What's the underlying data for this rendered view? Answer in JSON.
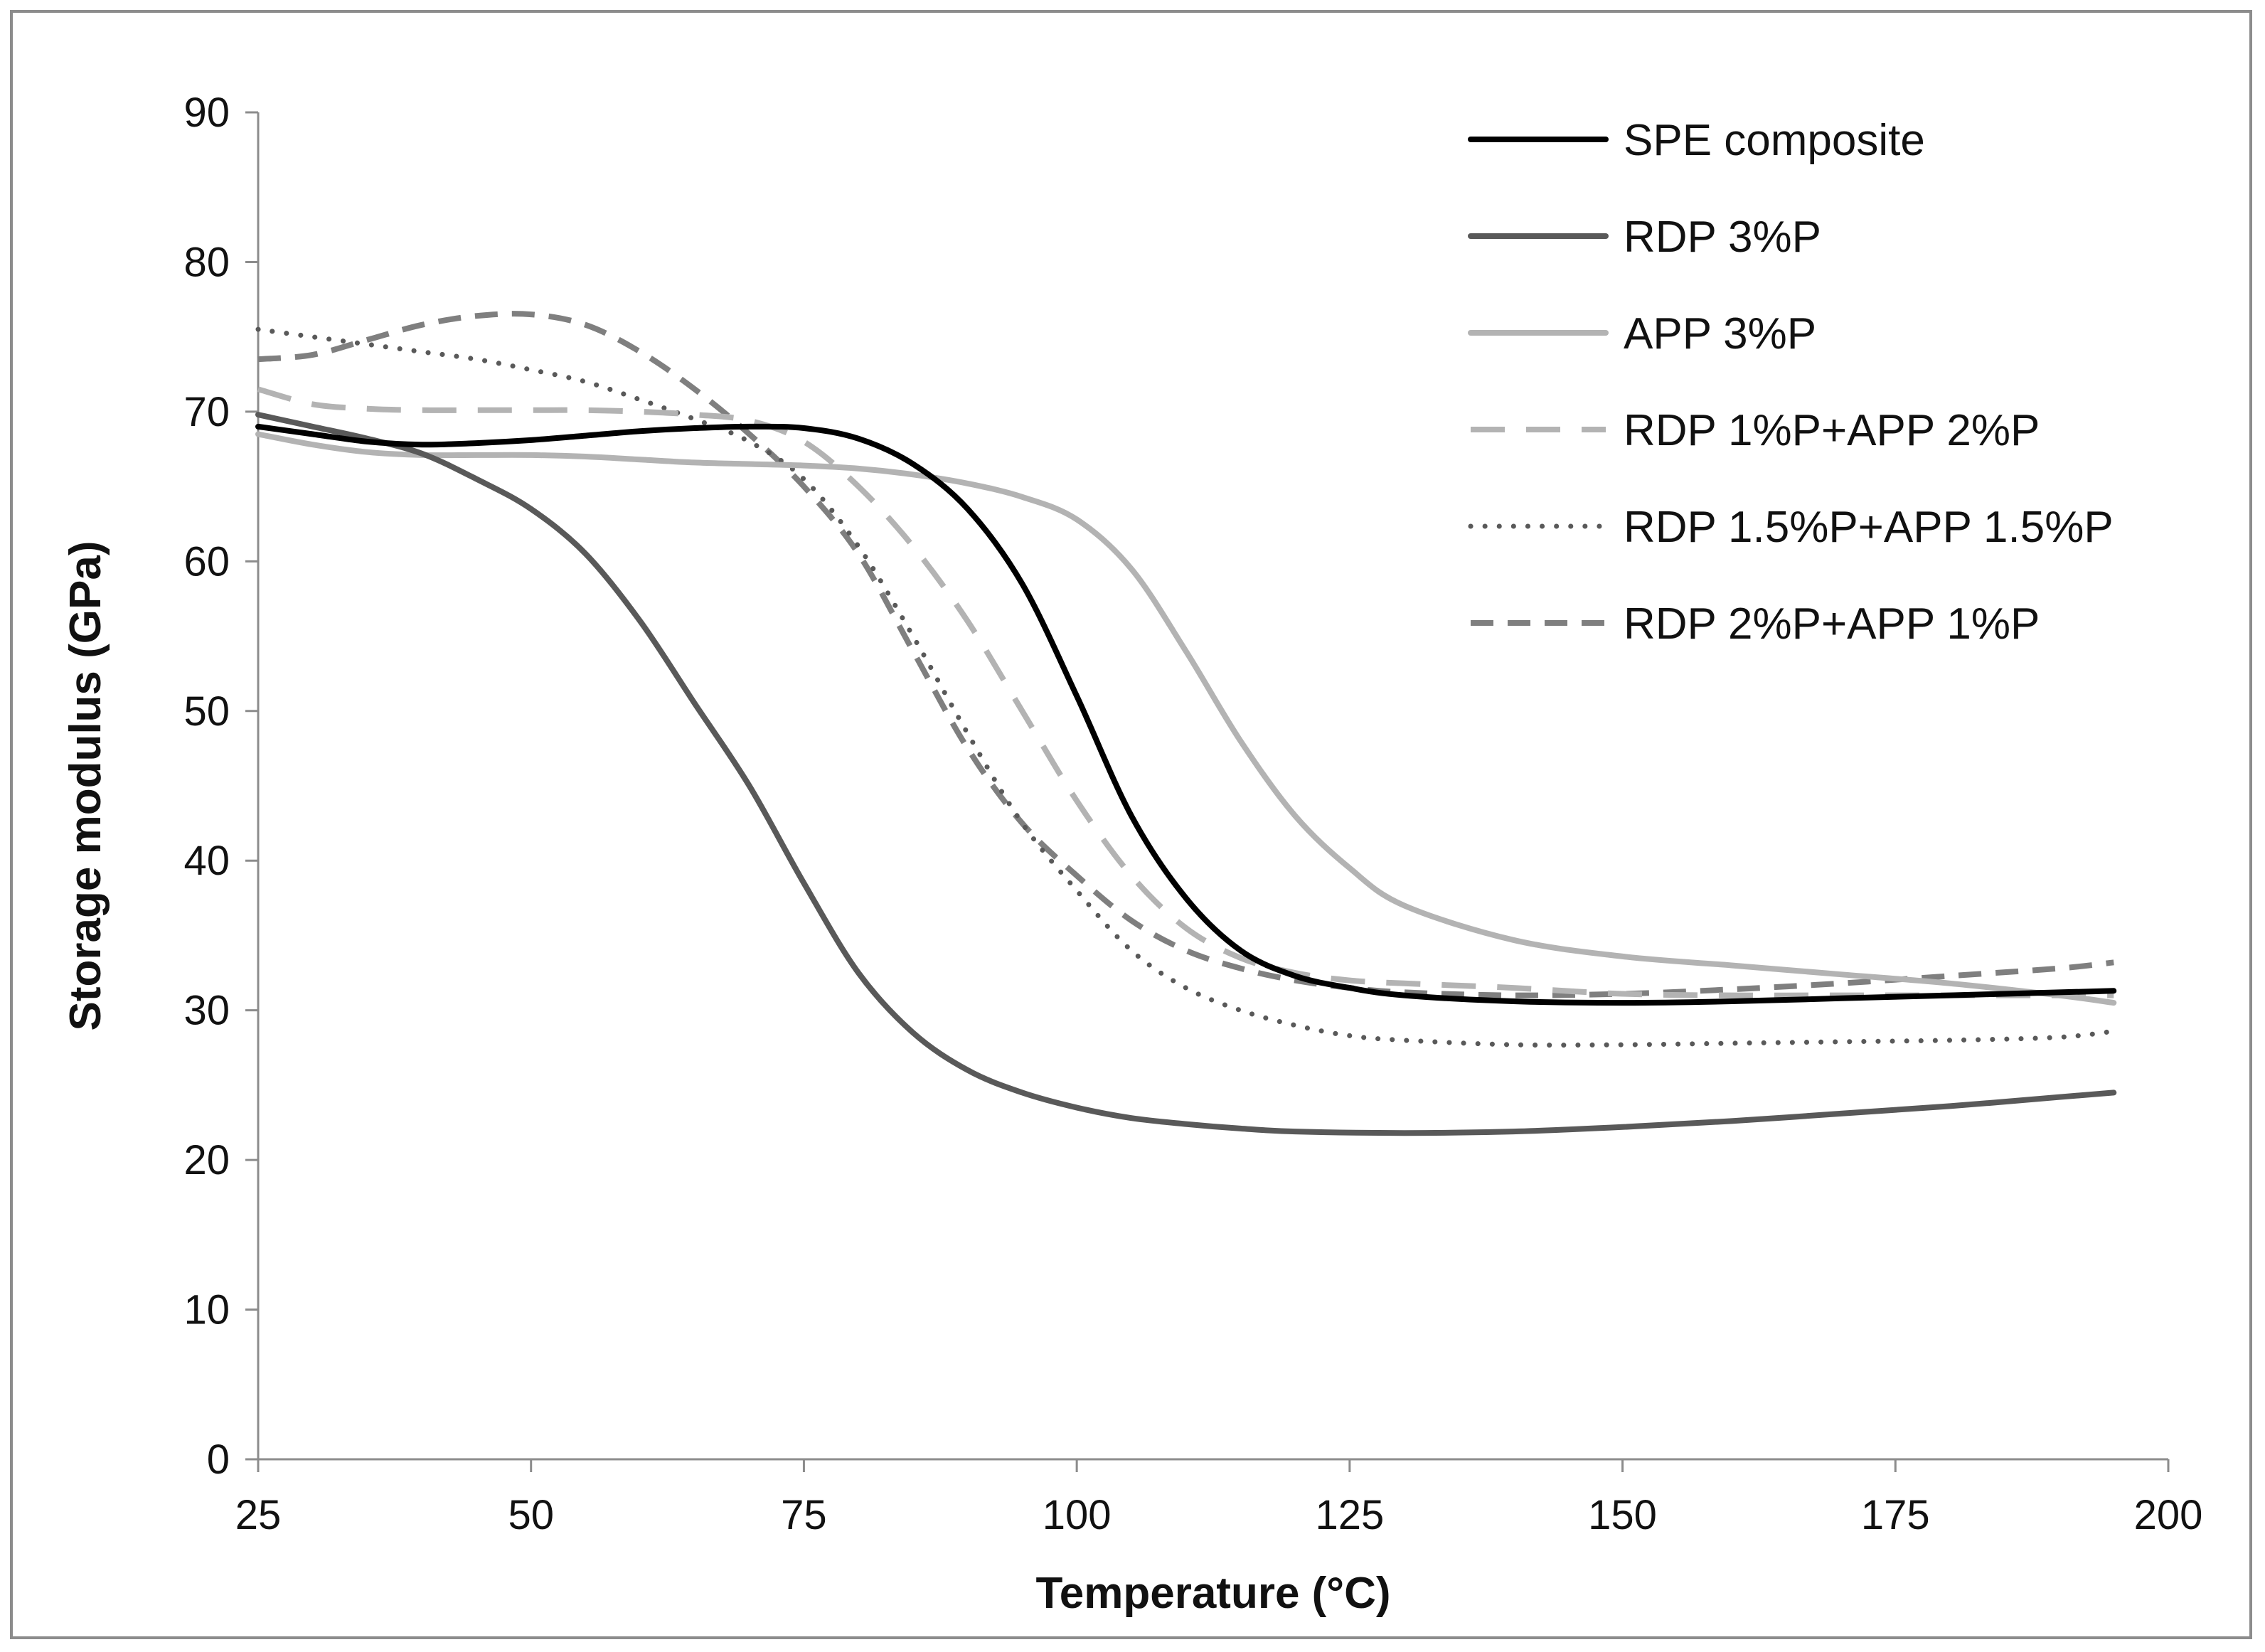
{
  "chart_data": {
    "type": "line",
    "title": "",
    "xlabel": "Temperature (°C)",
    "ylabel": "Storage modulus (GPa)",
    "xlim": [
      25,
      200
    ],
    "ylim": [
      0,
      90
    ],
    "xticks": [
      25,
      50,
      75,
      100,
      125,
      150,
      175,
      200
    ],
    "yticks": [
      0,
      10,
      20,
      30,
      40,
      50,
      60,
      70,
      80,
      90
    ],
    "grid": false,
    "legend_position": "top-right",
    "series": [
      {
        "name": "SPE composite",
        "color": "#000000",
        "style": "solid",
        "x": [
          25,
          30,
          35,
          40,
          45,
          50,
          55,
          60,
          65,
          70,
          75,
          80,
          85,
          90,
          95,
          100,
          105,
          110,
          115,
          120,
          125,
          130,
          140,
          150,
          160,
          170,
          180,
          190,
          195
        ],
        "y": [
          69,
          68.5,
          68,
          67.8,
          67.9,
          68.1,
          68.4,
          68.7,
          68.9,
          69,
          68.9,
          68.2,
          66.5,
          63.5,
          58.5,
          51,
          43,
          37.5,
          34,
          32.3,
          31.5,
          31,
          30.6,
          30.5,
          30.6,
          30.8,
          31,
          31.2,
          31.3
        ]
      },
      {
        "name": "RDP 3%P",
        "color": "#595959",
        "style": "solid",
        "x": [
          25,
          30,
          35,
          40,
          45,
          50,
          55,
          60,
          65,
          70,
          75,
          80,
          85,
          90,
          95,
          100,
          105,
          110,
          115,
          120,
          130,
          140,
          150,
          160,
          170,
          180,
          190,
          195
        ],
        "y": [
          69.8,
          69,
          68.2,
          67.2,
          65.5,
          63.5,
          60.5,
          56,
          50.5,
          45,
          38.5,
          32.5,
          28.5,
          26,
          24.5,
          23.5,
          22.8,
          22.4,
          22.1,
          21.9,
          21.8,
          21.9,
          22.2,
          22.6,
          23.1,
          23.6,
          24.2,
          24.5
        ]
      },
      {
        "name": "APP 3%P",
        "color": "#b3b3b3",
        "style": "solid",
        "x": [
          25,
          30,
          35,
          40,
          45,
          50,
          55,
          60,
          65,
          70,
          75,
          80,
          85,
          90,
          95,
          100,
          105,
          110,
          115,
          120,
          125,
          130,
          140,
          150,
          160,
          170,
          180,
          190,
          195
        ],
        "y": [
          68.5,
          67.8,
          67.3,
          67.1,
          67.1,
          67.1,
          67,
          66.8,
          66.6,
          66.5,
          66.4,
          66.2,
          65.8,
          65.2,
          64.3,
          62.8,
          59.5,
          54,
          48,
          43,
          39.5,
          37,
          34.7,
          33.6,
          33,
          32.4,
          31.8,
          31,
          30.5
        ]
      },
      {
        "name": "RDP 1%P+APP 2%P",
        "color": "#b3b3b3",
        "style": "dashed-long",
        "x": [
          25,
          30,
          35,
          40,
          45,
          50,
          55,
          60,
          65,
          70,
          75,
          80,
          85,
          90,
          95,
          100,
          105,
          110,
          115,
          120,
          125,
          130,
          140,
          150,
          160,
          170,
          180,
          190,
          195
        ],
        "y": [
          71.5,
          70.5,
          70.2,
          70.1,
          70.1,
          70.1,
          70.1,
          70,
          69.8,
          69.4,
          68,
          65,
          61,
          56,
          50,
          44,
          39,
          35.5,
          33.5,
          32.5,
          32,
          31.8,
          31.5,
          31.1,
          31,
          31,
          31,
          31,
          31
        ]
      },
      {
        "name": "RDP 1.5%P+APP 1.5%P",
        "color": "#595959",
        "style": "dotted",
        "x": [
          25,
          30,
          35,
          40,
          45,
          50,
          55,
          60,
          65,
          70,
          75,
          80,
          85,
          90,
          95,
          100,
          105,
          110,
          115,
          120,
          125,
          130,
          140,
          150,
          160,
          170,
          180,
          190,
          195
        ],
        "y": [
          75.5,
          75,
          74.5,
          74,
          73.5,
          72.8,
          72,
          70.8,
          69.5,
          68,
          65.5,
          61,
          55,
          48.5,
          42.5,
          38,
          34,
          31.5,
          30,
          29,
          28.3,
          28,
          27.7,
          27.7,
          27.8,
          27.9,
          28,
          28.2,
          28.6
        ]
      },
      {
        "name": "RDP 2%P+APP 1%P",
        "color": "#7f7f7f",
        "style": "dashed",
        "x": [
          25,
          30,
          35,
          40,
          45,
          50,
          55,
          60,
          65,
          70,
          75,
          80,
          85,
          90,
          95,
          100,
          105,
          110,
          115,
          120,
          125,
          130,
          140,
          150,
          160,
          170,
          180,
          190,
          195
        ],
        "y": [
          73.5,
          73.8,
          74.8,
          75.8,
          76.4,
          76.5,
          75.8,
          74,
          71.5,
          68.5,
          65,
          60.5,
          54,
          47.5,
          42.5,
          39,
          36,
          34,
          32.8,
          32,
          31.5,
          31.2,
          31,
          31.1,
          31.4,
          31.8,
          32.3,
          32.8,
          33.2
        ]
      }
    ]
  }
}
